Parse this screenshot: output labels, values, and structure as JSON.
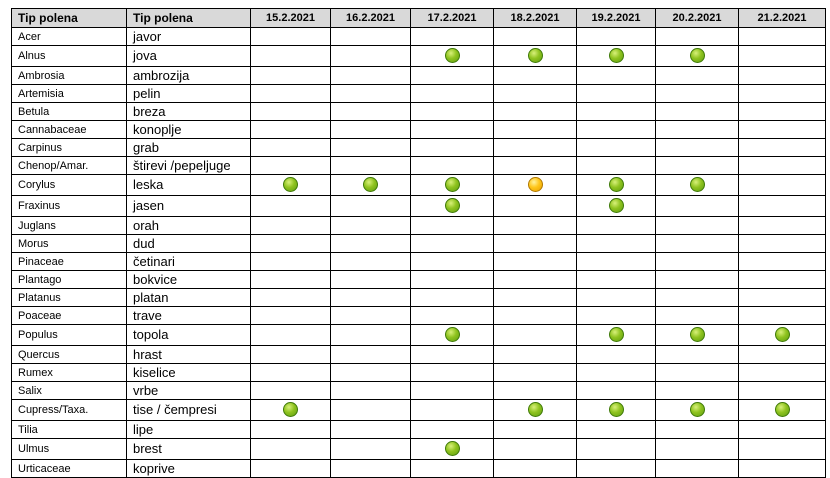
{
  "header": {
    "latin_label": "Tip polena",
    "local_label": "Tip polena",
    "dates": [
      "15.2.2021",
      "16.2.2021",
      "17.2.2021",
      "18.2.2021",
      "19.2.2021",
      "20.2.2021",
      "21.2.2021"
    ]
  },
  "legend_colors": {
    "green": "#8fc31f",
    "yellow": "#ffc61a"
  },
  "rows": [
    {
      "latin": "Acer",
      "local": "javor",
      "levels": [
        "",
        "",
        "",
        "",
        "",
        "",
        ""
      ]
    },
    {
      "latin": "Alnus",
      "local": "jova",
      "levels": [
        "",
        "",
        "green",
        "green",
        "green",
        "green",
        ""
      ]
    },
    {
      "latin": "Ambrosia",
      "local": "ambrozija",
      "levels": [
        "",
        "",
        "",
        "",
        "",
        "",
        ""
      ]
    },
    {
      "latin": "Artemisia",
      "local": "pelin",
      "levels": [
        "",
        "",
        "",
        "",
        "",
        "",
        ""
      ]
    },
    {
      "latin": "Betula",
      "local": "breza",
      "levels": [
        "",
        "",
        "",
        "",
        "",
        "",
        ""
      ]
    },
    {
      "latin": "Cannabaceae",
      "local": "konoplje",
      "levels": [
        "",
        "",
        "",
        "",
        "",
        "",
        ""
      ]
    },
    {
      "latin": "Carpinus",
      "local": "grab",
      "levels": [
        "",
        "",
        "",
        "",
        "",
        "",
        ""
      ]
    },
    {
      "latin": "Chenop/Amar.",
      "local": "štirevi /pepeljuge",
      "levels": [
        "",
        "",
        "",
        "",
        "",
        "",
        ""
      ]
    },
    {
      "latin": "Corylus",
      "local": "leska",
      "levels": [
        "green",
        "green",
        "green",
        "yellow",
        "green",
        "green",
        ""
      ]
    },
    {
      "latin": "Fraxinus",
      "local": "jasen",
      "levels": [
        "",
        "",
        "green",
        "",
        "green",
        "",
        ""
      ]
    },
    {
      "latin": "Juglans",
      "local": "orah",
      "levels": [
        "",
        "",
        "",
        "",
        "",
        "",
        ""
      ]
    },
    {
      "latin": "Morus",
      "local": "dud",
      "levels": [
        "",
        "",
        "",
        "",
        "",
        "",
        ""
      ]
    },
    {
      "latin": "Pinaceae",
      "local": "četinari",
      "levels": [
        "",
        "",
        "",
        "",
        "",
        "",
        ""
      ]
    },
    {
      "latin": "Plantago",
      "local": "bokvice",
      "levels": [
        "",
        "",
        "",
        "",
        "",
        "",
        ""
      ]
    },
    {
      "latin": "Platanus",
      "local": "platan",
      "levels": [
        "",
        "",
        "",
        "",
        "",
        "",
        ""
      ]
    },
    {
      "latin": "Poaceae",
      "local": "trave",
      "levels": [
        "",
        "",
        "",
        "",
        "",
        "",
        ""
      ]
    },
    {
      "latin": "Populus",
      "local": "topola",
      "levels": [
        "",
        "",
        "green",
        "",
        "green",
        "green",
        "green"
      ]
    },
    {
      "latin": "Quercus",
      "local": "hrast",
      "levels": [
        "",
        "",
        "",
        "",
        "",
        "",
        ""
      ]
    },
    {
      "latin": "Rumex",
      "local": "kiselice",
      "levels": [
        "",
        "",
        "",
        "",
        "",
        "",
        ""
      ]
    },
    {
      "latin": "Salix",
      "local": "vrbe",
      "levels": [
        "",
        "",
        "",
        "",
        "",
        "",
        ""
      ]
    },
    {
      "latin": "Cupress/Taxa.",
      "local": "tise / čempresi",
      "levels": [
        "green",
        "",
        "",
        "green",
        "green",
        "green",
        "green"
      ]
    },
    {
      "latin": "Tilia",
      "local": "lipe",
      "levels": [
        "",
        "",
        "",
        "",
        "",
        "",
        ""
      ]
    },
    {
      "latin": "Ulmus",
      "local": "brest",
      "levels": [
        "",
        "",
        "green",
        "",
        "",
        "",
        ""
      ]
    },
    {
      "latin": "Urticaceae",
      "local": "koprive",
      "levels": [
        "",
        "",
        "",
        "",
        "",
        "",
        ""
      ]
    }
  ]
}
